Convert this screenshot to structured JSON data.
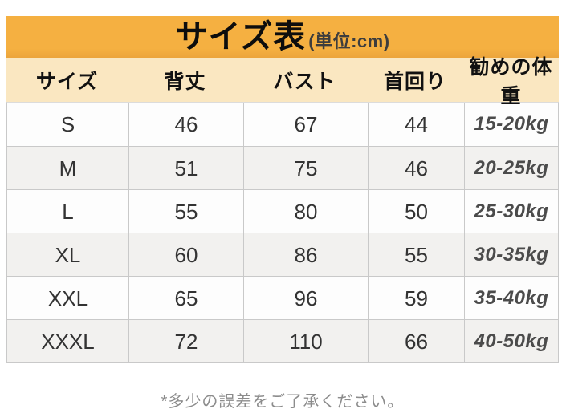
{
  "chart_data": {
    "type": "table",
    "title": "サイズ表",
    "unit_label": "(単位:cm)",
    "columns": [
      "サイズ",
      "背丈",
      "バスト",
      "首回り",
      "勧めの体重"
    ],
    "rows": [
      [
        "S",
        "46",
        "67",
        "44",
        "15-20kg"
      ],
      [
        "M",
        "51",
        "75",
        "46",
        "20-25kg"
      ],
      [
        "L",
        "55",
        "80",
        "50",
        "25-30kg"
      ],
      [
        "XL",
        "60",
        "86",
        "55",
        "30-35kg"
      ],
      [
        "XXL",
        "65",
        "96",
        "59",
        "35-40kg"
      ],
      [
        "XXXL",
        "72",
        "110",
        "66",
        "40-50kg"
      ]
    ],
    "footnote": "*多少の誤差をご了承ください。"
  },
  "colors": {
    "band": "#f5b041",
    "band-edge": "#eca53c",
    "header-row": "#fae7c1",
    "row-alt": "#f2f1ef",
    "border": "#c9c9c9",
    "text-dark": "#333333",
    "text-weight": "#4b4b4b",
    "footer-text": "#8c8c8c"
  }
}
